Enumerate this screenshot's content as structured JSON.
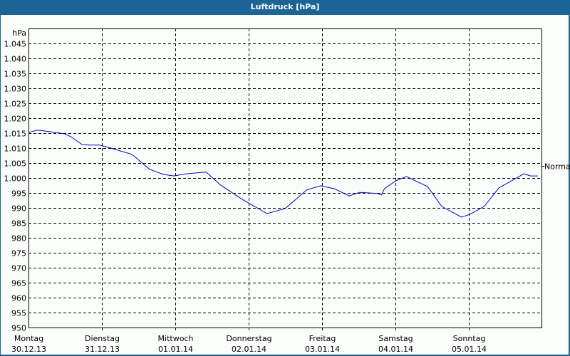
{
  "window": {
    "title": "Luftdruck [hPa]"
  },
  "colors": {
    "frame": "#1c6396",
    "background": "#fbfdfb",
    "line": "#0000c8",
    "grid": "#000000"
  },
  "chart_data": {
    "type": "line",
    "title": "Luftdruck [hPa]",
    "ylabel": "hPa",
    "xlabel": "",
    "ylim": [
      950,
      1050
    ],
    "grid": true,
    "y_ticks": [
      "1.045",
      "1.040",
      "1.035",
      "1.030",
      "1.025",
      "1.020",
      "1.015",
      "1.010",
      "1.005",
      "1.000",
      "995",
      "990",
      "985",
      "980",
      "975",
      "970",
      "965",
      "960",
      "955",
      "950"
    ],
    "x_ticks": [
      {
        "day": "Montag",
        "date": "30.12.13"
      },
      {
        "day": "Dienstag",
        "date": "31.12.13"
      },
      {
        "day": "Mittwoch",
        "date": "01.01.14"
      },
      {
        "day": "Donnerstag",
        "date": "02.01.14"
      },
      {
        "day": "Freitag",
        "date": "03.01.14"
      },
      {
        "day": "Samstag",
        "date": "04.01.14"
      },
      {
        "day": "Sonntag",
        "date": "05.01.14"
      }
    ],
    "reference": {
      "label": "Normal",
      "value": 1004
    },
    "series": [
      {
        "name": "Luftdruck",
        "x_days": [
          0.0,
          0.12,
          0.29,
          0.49,
          0.58,
          0.73,
          0.83,
          0.97,
          1.12,
          1.41,
          1.65,
          1.84,
          1.98,
          2.15,
          2.42,
          2.62,
          2.91,
          3.25,
          3.5,
          3.79,
          3.98,
          4.17,
          4.37,
          4.51,
          4.76,
          4.81,
          4.85,
          5.0,
          5.15,
          5.44,
          5.63,
          5.9,
          6.02,
          6.21,
          6.41,
          6.6,
          6.75,
          6.84,
          6.94
        ],
        "values": [
          1015.2,
          1016.0,
          1015.5,
          1014.8,
          1013.8,
          1011.2,
          1011.0,
          1011.0,
          1010.0,
          1007.9,
          1002.9,
          1001.2,
          1000.7,
          1001.4,
          1002.0,
          997.6,
          992.9,
          988.1,
          989.8,
          996.0,
          997.4,
          996.4,
          994.0,
          995.2,
          994.8,
          994.3,
          996.4,
          999.0,
          1000.5,
          997.1,
          990.5,
          986.9,
          987.9,
          990.5,
          996.7,
          999.3,
          1001.4,
          1000.7,
          1000.7
        ]
      }
    ]
  }
}
